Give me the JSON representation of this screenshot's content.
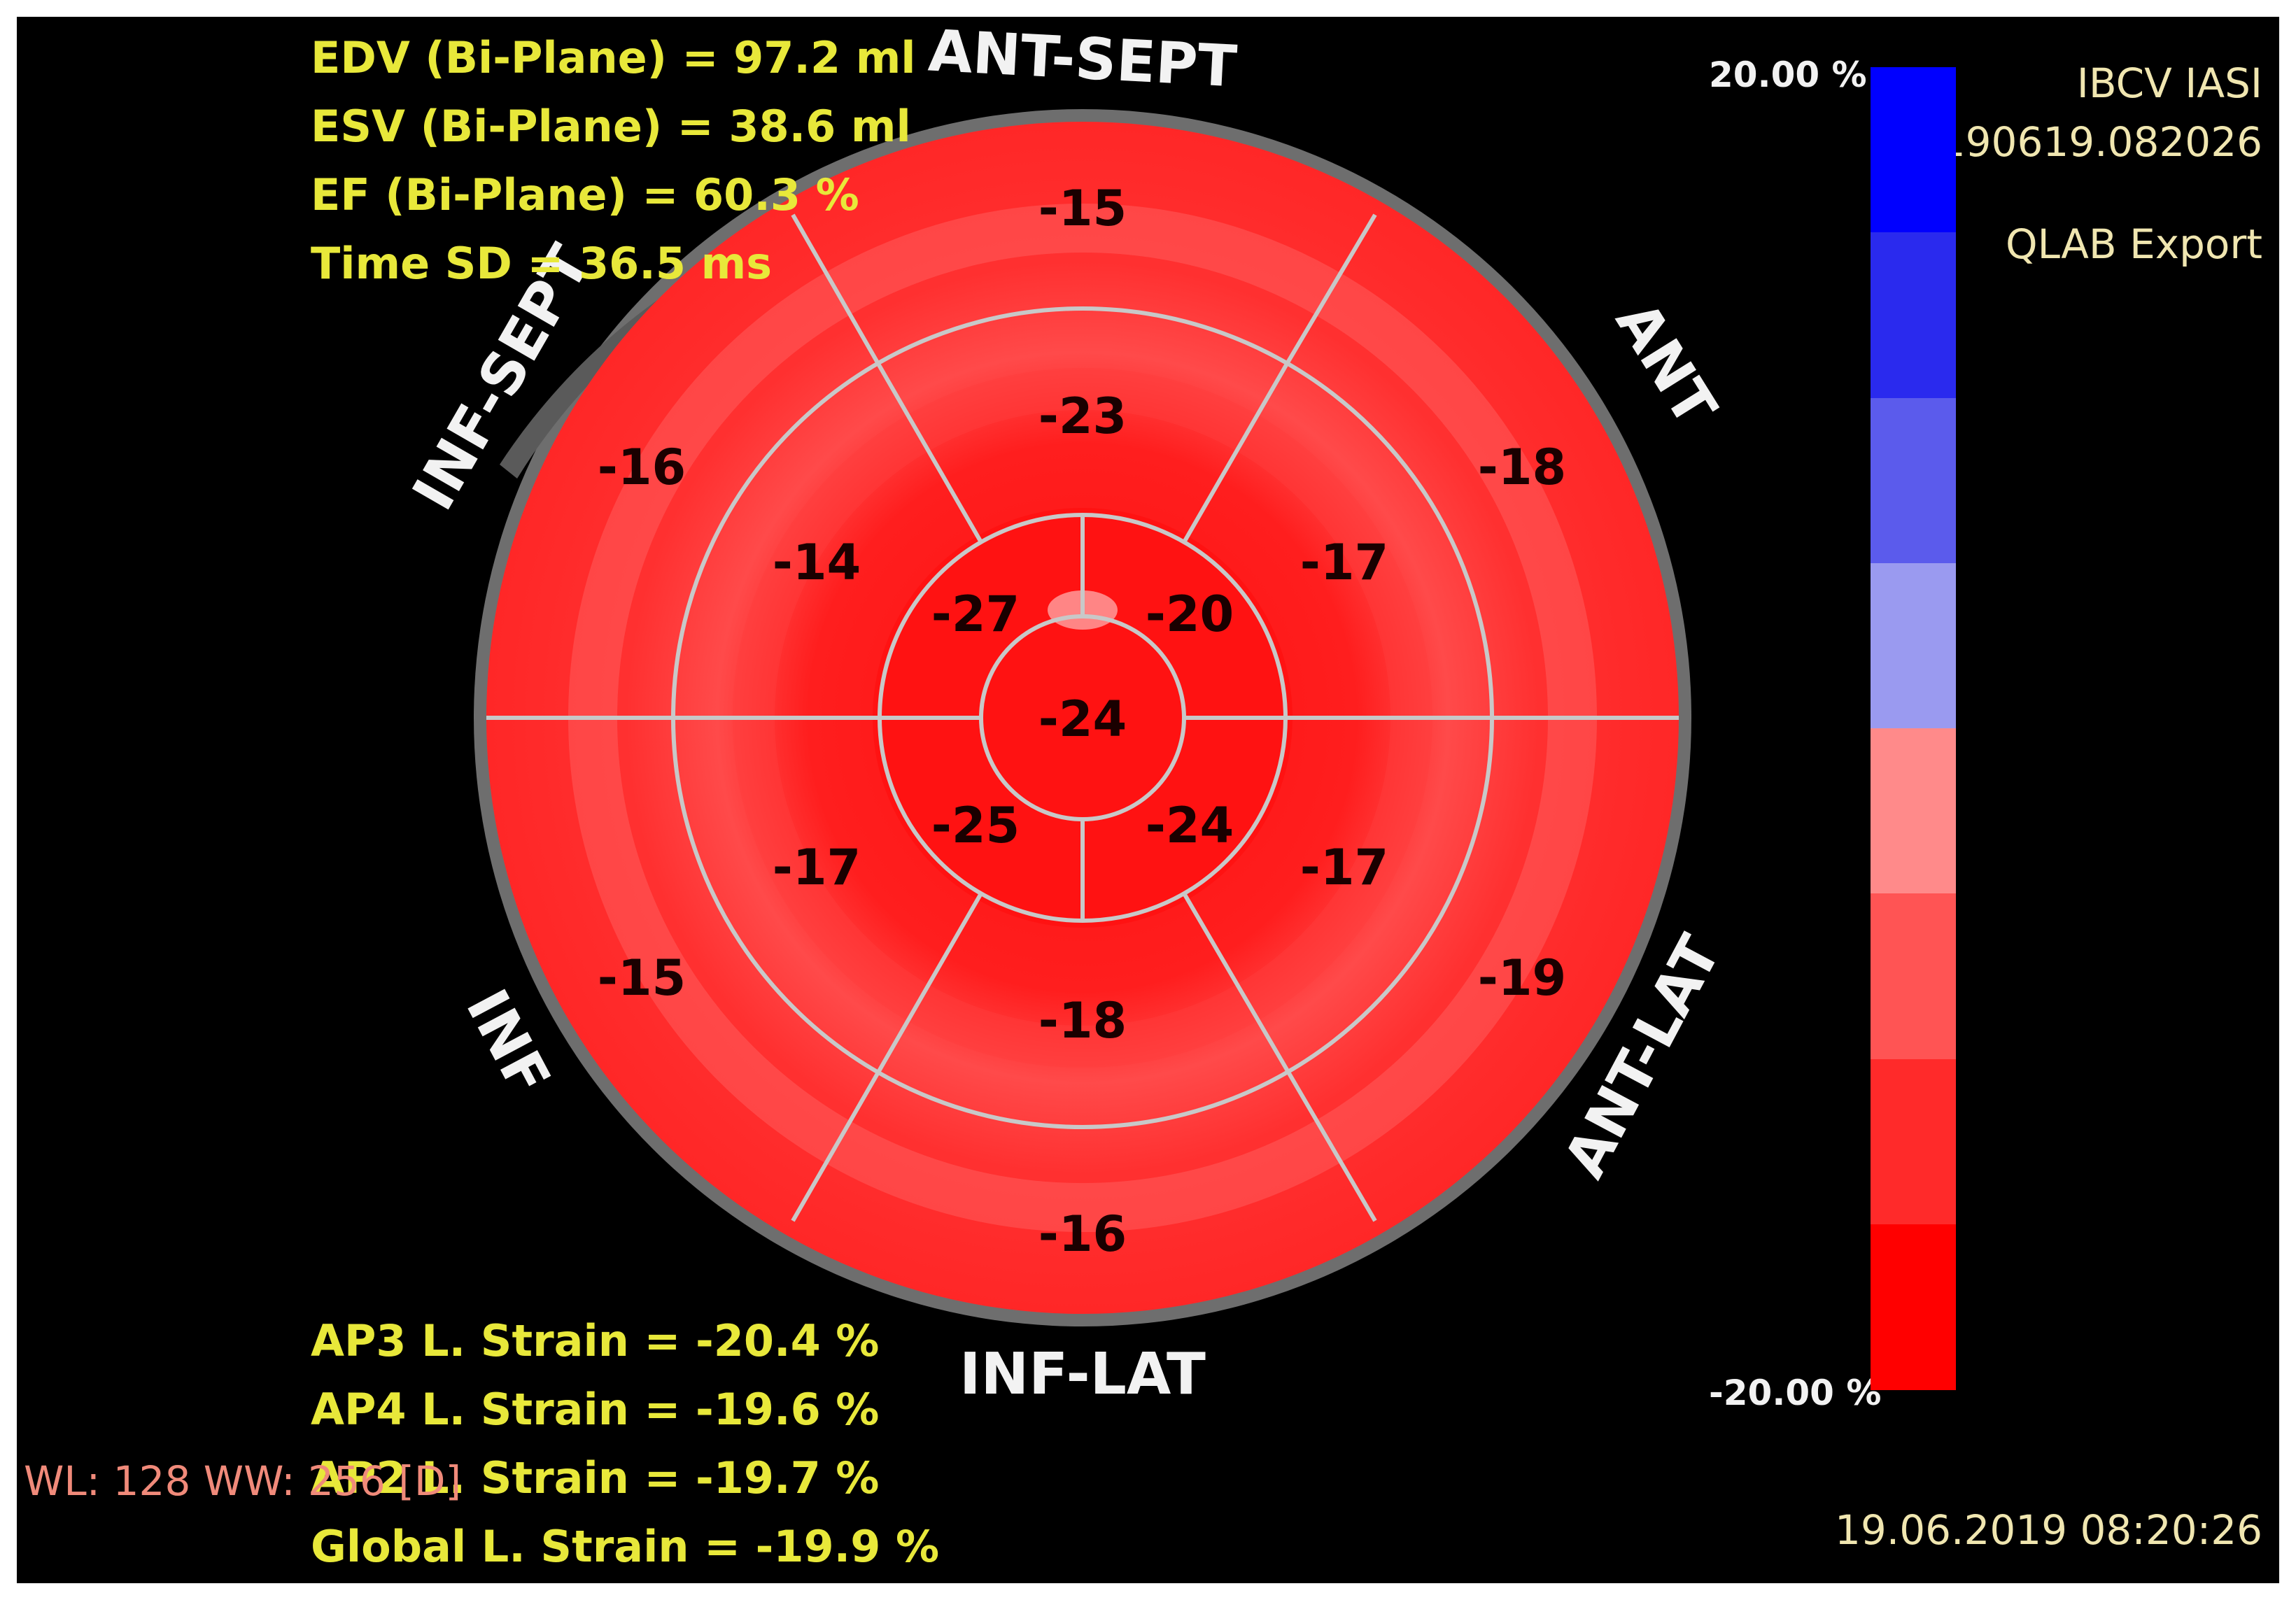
{
  "measurements_top": {
    "edv": "EDV (Bi-Plane) = 97.2 ml",
    "esv": "ESV (Bi-Plane) = 38.6 ml",
    "ef": "EF (Bi-Plane) = 60.3 %",
    "time_sd": "Time SD = 36.5 ms"
  },
  "measurements_bottom": {
    "ap3": "AP3 L. Strain = -20.4 %",
    "ap4": "AP4 L. Strain = -19.6 %",
    "ap2": "AP2 L. Strain = -19.7 %",
    "global": "Global L. Strain = -19.9 %"
  },
  "window_level": "WL: 128 WW: 256 [D]",
  "institution": "IBCV IASI",
  "study_id": "20190619.082026",
  "export_label": "QLAB Export",
  "timestamp": "19.06.2019 08:20:26",
  "colorbar": {
    "max_label": "20.00 %",
    "min_label": "-20.00 %",
    "colors": [
      "#0000ff",
      "#2a2aee",
      "#5b5bec",
      "#9a9af0",
      "#ff8a8a",
      "#ff5454",
      "#ff2a2a",
      "#ff0000"
    ]
  },
  "wall_labels": {
    "ant_sept": "ANT-SEPT",
    "ant": "ANT",
    "ant_lat": "ANT-LAT",
    "inf_lat": "INF-LAT",
    "inf": "INF",
    "inf_sept": "INF-SEPT"
  },
  "segments": {
    "basal": [
      "-15",
      "-18",
      "-19",
      "-16",
      "-15",
      "-16"
    ],
    "mid": [
      "-23",
      "-17",
      "-17",
      "-18",
      "-17",
      "-14"
    ],
    "apical": [
      "-20",
      "-24",
      "-25",
      "-27"
    ],
    "apex": "-24"
  },
  "colors": {
    "segment_fill": "#ff2b2b",
    "segment_inner": "#ff1414",
    "segment_ring_light": "#ff5a5a",
    "divider": "#c8c8c8",
    "outer_ring": "#6e6e6e",
    "segment_text": "#1a0000"
  }
}
